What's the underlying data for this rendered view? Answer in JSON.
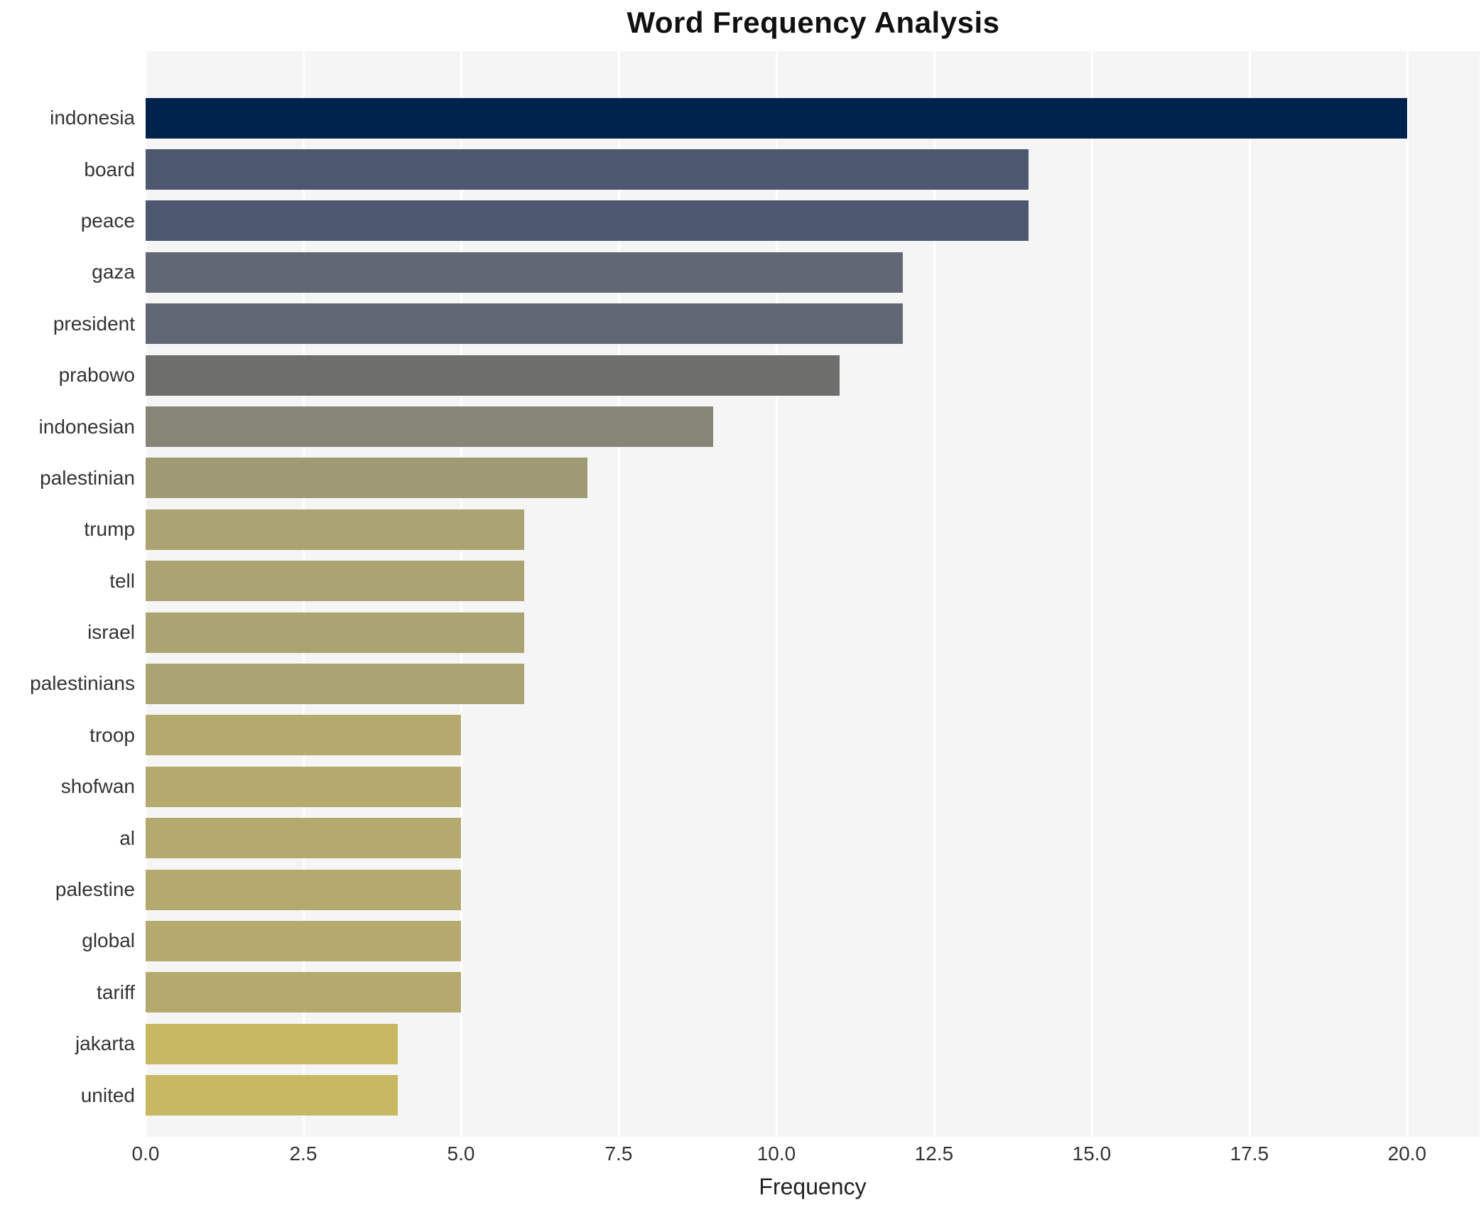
{
  "title": "Word Frequency Analysis",
  "xlabel": "Frequency",
  "colors": {
    "figure_background": "#ffffff",
    "plot_background": "#f5f5f6",
    "grid": "#ffffff",
    "title_text": "#111111",
    "tick_text": "#333333"
  },
  "chart_data": {
    "type": "bar",
    "orientation": "horizontal",
    "title": "Word Frequency Analysis",
    "xlabel": "Frequency",
    "ylabel": "",
    "xlim": [
      0,
      21.15
    ],
    "grid": true,
    "legend": false,
    "colormap": "cividis (reversed by value)",
    "x_tick_values": [
      0.0,
      2.5,
      5.0,
      7.5,
      10.0,
      12.5,
      15.0,
      17.5,
      20.0
    ],
    "x_tick_labels": [
      "0.0",
      "2.5",
      "5.0",
      "7.5",
      "10.0",
      "12.5",
      "15.0",
      "17.5",
      "20.0"
    ],
    "categories": [
      "indonesia",
      "board",
      "peace",
      "gaza",
      "president",
      "prabowo",
      "indonesian",
      "palestinian",
      "trump",
      "tell",
      "israel",
      "palestinians",
      "troop",
      "shofwan",
      "al",
      "palestine",
      "global",
      "tariff",
      "jakarta",
      "united"
    ],
    "values": [
      20,
      14,
      14,
      12,
      12,
      11,
      9,
      7,
      6,
      6,
      6,
      6,
      5,
      5,
      5,
      5,
      5,
      5,
      4,
      4
    ],
    "bar_colors": [
      "#00234e",
      "#4d5870",
      "#4d5870",
      "#616873",
      "#616873",
      "#6e6f6d",
      "#878578",
      "#a09a74",
      "#aba371",
      "#aba371",
      "#aba371",
      "#aba371",
      "#b5aa6e",
      "#b5aa6e",
      "#b5aa6e",
      "#b5aa6e",
      "#b5aa6e",
      "#b5aa6e",
      "#c8b863",
      "#c8b863"
    ]
  }
}
